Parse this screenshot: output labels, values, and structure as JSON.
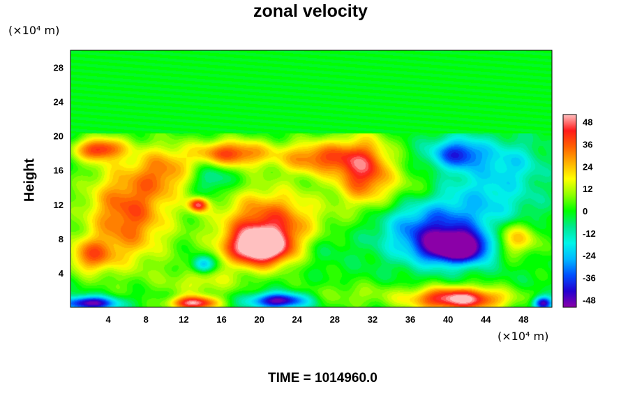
{
  "chart_data": {
    "type": "heatmap",
    "title": "zonal velocity",
    "ylabel": "Height",
    "xlabel": "",
    "x_unit": "(×10⁴ m)",
    "y_unit": "(×10⁴ m)",
    "footer": "TIME = 1014960.0",
    "xlim": [
      0,
      51
    ],
    "ylim": [
      0,
      30
    ],
    "x_ticks": [
      4,
      8,
      12,
      16,
      20,
      24,
      28,
      32,
      36,
      40,
      44,
      48
    ],
    "y_ticks": [
      4,
      8,
      12,
      16,
      20,
      24,
      28
    ],
    "colorbar": {
      "vmin": -52,
      "vmax": 52,
      "ticks": [
        48,
        36,
        24,
        12,
        0,
        -12,
        -24,
        -36,
        -48
      ],
      "colors": [
        "#8b00a8",
        "#2200d0",
        "#0050ff",
        "#00b8ff",
        "#00f5e8",
        "#00e890",
        "#00ff00",
        "#8fff00",
        "#ffff00",
        "#ffb000",
        "#ff6000",
        "#ff1a1a",
        "#ffc0c0"
      ]
    },
    "background_value": 0,
    "features": [
      {
        "x": 20,
        "y": 7,
        "sx": 3.5,
        "sy": 2.2,
        "value": 55
      },
      {
        "x": 21,
        "y": 10,
        "sx": 5.5,
        "sy": 4,
        "value": 38
      },
      {
        "x": 6,
        "y": 11,
        "sx": 4.5,
        "sy": 6,
        "value": 38
      },
      {
        "x": 2,
        "y": 6,
        "sx": 2.5,
        "sy": 2,
        "value": 28
      },
      {
        "x": 10,
        "y": 16,
        "sx": 3,
        "sy": 3,
        "value": 24
      },
      {
        "x": 17,
        "y": 18,
        "sx": 4,
        "sy": 1.6,
        "value": 40
      },
      {
        "x": 26,
        "y": 17.5,
        "sx": 4,
        "sy": 2,
        "value": 34
      },
      {
        "x": 31,
        "y": 16,
        "sx": 3,
        "sy": 4,
        "value": 42
      },
      {
        "x": 3,
        "y": 18.5,
        "sx": 2.5,
        "sy": 1.3,
        "value": 40
      },
      {
        "x": 13.5,
        "y": 12,
        "sx": 1,
        "sy": 0.8,
        "value": 42
      },
      {
        "x": 14,
        "y": 3,
        "sx": 4,
        "sy": 1.8,
        "value": 16
      },
      {
        "x": 36,
        "y": 14,
        "sx": 3.5,
        "sy": 2.5,
        "value": 10
      },
      {
        "x": 47,
        "y": 8,
        "sx": 2.5,
        "sy": 2,
        "value": 30
      },
      {
        "x": 41,
        "y": 1,
        "sx": 5,
        "sy": 1.4,
        "value": 55
      },
      {
        "x": 13,
        "y": 0.5,
        "sx": 2.5,
        "sy": 0.8,
        "value": 50
      },
      {
        "x": 30,
        "y": 1.5,
        "sx": 5,
        "sy": 1.5,
        "value": 10
      },
      {
        "x": 41,
        "y": 7,
        "sx": 3.5,
        "sy": 1.8,
        "value": -56
      },
      {
        "x": 38,
        "y": 9,
        "sx": 5,
        "sy": 3.5,
        "value": -34
      },
      {
        "x": 41,
        "y": 18,
        "sx": 3,
        "sy": 1.8,
        "value": -34
      },
      {
        "x": 44,
        "y": 13,
        "sx": 5,
        "sy": 5,
        "value": -18
      },
      {
        "x": 47,
        "y": 17,
        "sx": 3,
        "sy": 2.5,
        "value": -12
      },
      {
        "x": 2,
        "y": 0.5,
        "sx": 3,
        "sy": 0.8,
        "value": -50
      },
      {
        "x": 22,
        "y": 0.8,
        "sx": 3,
        "sy": 0.9,
        "value": -50
      },
      {
        "x": 50,
        "y": 0.5,
        "sx": 1,
        "sy": 0.8,
        "value": -50
      },
      {
        "x": 14,
        "y": 5,
        "sx": 1.2,
        "sy": 1,
        "value": -30
      },
      {
        "x": 15,
        "y": 15,
        "sx": 2,
        "sy": 2,
        "value": -14
      },
      {
        "x": 26,
        "y": 7,
        "sx": 3,
        "sy": 2,
        "value": -8
      }
    ],
    "stratosphere": {
      "y_start": 20.3,
      "value": 0
    }
  }
}
